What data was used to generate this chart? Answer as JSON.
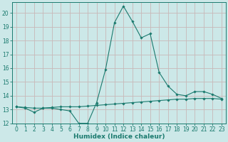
{
  "xlabel": "Humidex (Indice chaleur)",
  "x": [
    0,
    1,
    2,
    3,
    4,
    5,
    6,
    7,
    8,
    9,
    10,
    11,
    12,
    13,
    14,
    15,
    16,
    17,
    18,
    19,
    20,
    21,
    22,
    23
  ],
  "line1": [
    13.2,
    13.1,
    12.8,
    13.1,
    13.1,
    13.0,
    12.9,
    12.0,
    12.0,
    13.5,
    15.9,
    19.3,
    20.5,
    19.4,
    18.2,
    18.5,
    15.7,
    14.7,
    14.1,
    14.0,
    14.3,
    14.3,
    14.1,
    13.8
  ],
  "line2": [
    13.2,
    13.15,
    13.1,
    13.1,
    13.15,
    13.2,
    13.2,
    13.2,
    13.25,
    13.3,
    13.35,
    13.4,
    13.45,
    13.5,
    13.55,
    13.6,
    13.65,
    13.7,
    13.75,
    13.75,
    13.8,
    13.8,
    13.8,
    13.75
  ],
  "line_color": "#1a7a6e",
  "bg_color": "#cce8e8",
  "grid_color": "#c8b8b8",
  "ylim": [
    12,
    20.8
  ],
  "yticks": [
    12,
    13,
    14,
    15,
    16,
    17,
    18,
    19,
    20
  ],
  "xticks": [
    0,
    1,
    2,
    3,
    4,
    5,
    6,
    7,
    8,
    9,
    10,
    11,
    12,
    13,
    14,
    15,
    16,
    17,
    18,
    19,
    20,
    21,
    22,
    23
  ],
  "tick_fontsize": 5.5,
  "xlabel_fontsize": 6.5
}
